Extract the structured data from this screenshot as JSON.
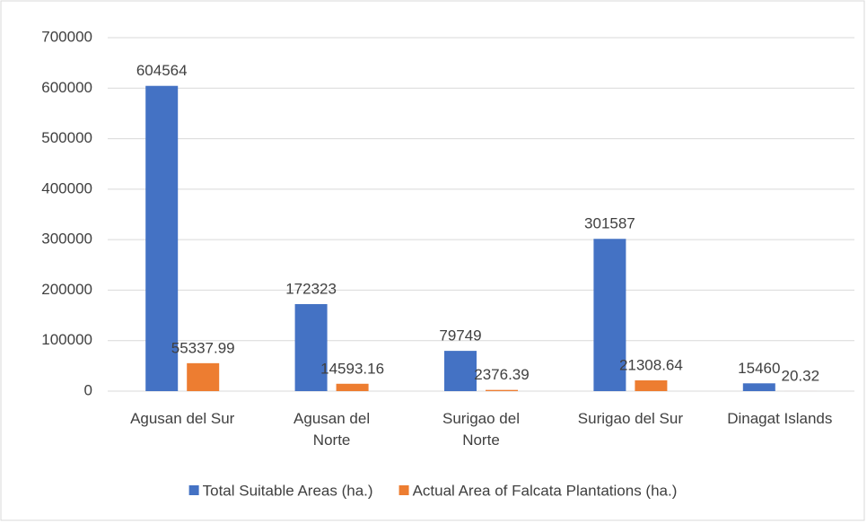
{
  "chart_data": {
    "type": "bar",
    "categories": [
      "Agusan del Sur",
      "Agusan del Norte",
      "Surigao del Norte",
      "Surigao del Sur",
      "Dinagat Islands"
    ],
    "series": [
      {
        "name": "Total Suitable Areas (ha.)",
        "color": "#4472c4",
        "values": [
          604564,
          172323,
          79749,
          301587,
          15460
        ]
      },
      {
        "name": "Actual Area of Falcata Plantations (ha.)",
        "color": "#ed7d31",
        "values": [
          55337.99,
          14593.16,
          2376.39,
          21308.64,
          20.32
        ]
      }
    ],
    "ylim": [
      0,
      700000
    ],
    "yticks": [
      0,
      100000,
      200000,
      300000,
      400000,
      500000,
      600000,
      700000
    ],
    "grid": true,
    "legend": "bottom"
  }
}
